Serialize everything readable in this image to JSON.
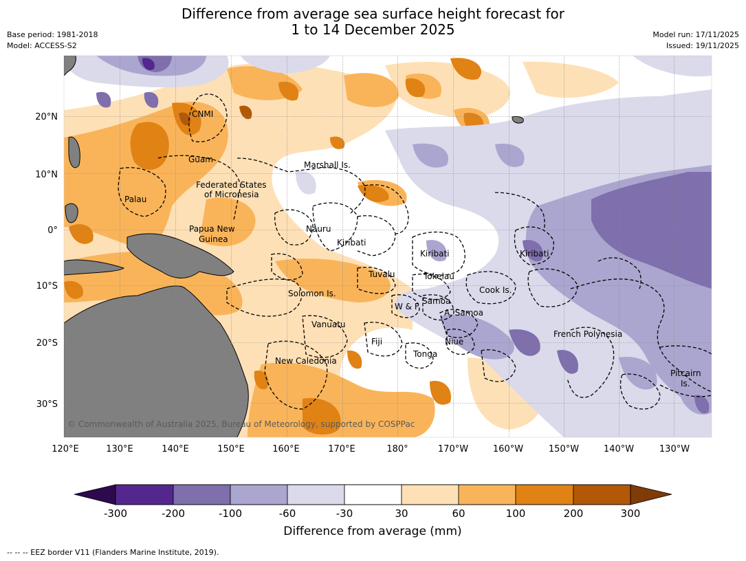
{
  "header": {
    "title_line1": "Difference from average sea surface height forecast for",
    "title_line2": "1 to 14 December 2025",
    "base_period": "Base period: 1981-2018",
    "model": "Model: ACCESS-S2",
    "model_run": "Model run: 17/11/2025",
    "issued": "Issued: 19/11/2025"
  },
  "axes": {
    "lon_labels": [
      "120°E",
      "130°E",
      "140°E",
      "150°E",
      "160°E",
      "170°E",
      "180°",
      "170°W",
      "160°W",
      "150°W",
      "140°W",
      "130°W"
    ],
    "lat_labels": [
      "20°N",
      "10°N",
      "0°",
      "10°S",
      "20°S",
      "30°S"
    ]
  },
  "places": [
    "CNMI",
    "Guam",
    "Marshall Is.",
    "Federated States",
    "of Micronesia",
    "Palau",
    "Nauru",
    "Papua New",
    "Guinea",
    "Kiribati",
    "Kiribati",
    "Kiribati",
    "Tuvalu",
    "Tokelau",
    "Cook Is.",
    "Solomon Is.",
    "W & F",
    "Samoa",
    "A. Samoa",
    "Vanuatu",
    "Fiji",
    "Niue",
    "French Polynesia",
    "Tonga",
    "New Caledonia",
    "Pitcairn",
    "Is."
  ],
  "copyright": "© Commonwealth of Australia 2025, Bureau of Meteorology, supported by COSPPac",
  "colorbar": {
    "tick_labels": [
      "-300",
      "-200",
      "-100",
      "-60",
      "-30",
      "30",
      "60",
      "100",
      "200",
      "300"
    ],
    "colors": [
      "#2d0a4e",
      "#54278f",
      "#7f6fad",
      "#aba6cf",
      "#dadaeb",
      "#ffffff",
      "#fee0b6",
      "#f9b45a",
      "#e08214",
      "#b35806",
      "#7f3b08"
    ],
    "title": "Difference from average (mm)"
  },
  "legend_footer": "--  --  -- EEZ border V11 (Flanders Marine Institute, 2019)."
}
